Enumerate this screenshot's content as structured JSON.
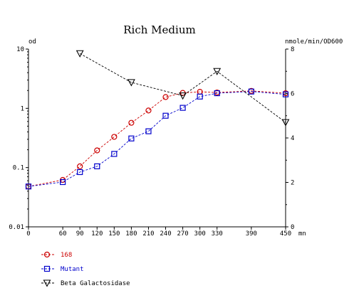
{
  "chart_data": {
    "type": "line",
    "title": "Rich Medium",
    "y_left_label": "od",
    "y_right_label": "nmole/min/OD600",
    "x_unit_label": "mn",
    "x_ticks": [
      0,
      60,
      90,
      120,
      150,
      180,
      210,
      240,
      270,
      300,
      330,
      390,
      450
    ],
    "x_range": [
      0,
      450
    ],
    "y_left_scale": "log",
    "y_left_range": [
      0.01,
      10
    ],
    "y_left_ticks": [
      {
        "value": 10,
        "label": "10"
      },
      {
        "value": 1,
        "label": "1"
      },
      {
        "value": 0.1,
        "label": "0.1"
      },
      {
        "value": 0.01,
        "label": "0.01"
      }
    ],
    "y_right_range": [
      0,
      8
    ],
    "y_right_ticks": [
      0,
      2,
      4,
      6,
      8
    ],
    "grid": false,
    "legend_position": "bottom-left",
    "series": [
      {
        "name": "168",
        "axis": "left",
        "color": "#cc0000",
        "marker": "circle",
        "x": [
          0,
          60,
          90,
          120,
          150,
          180,
          210,
          240,
          270,
          300,
          330,
          390,
          450
        ],
        "y": [
          0.048,
          0.062,
          0.105,
          0.195,
          0.33,
          0.57,
          0.92,
          1.55,
          1.82,
          1.9,
          1.85,
          1.97,
          1.8
        ]
      },
      {
        "name": "Mutant",
        "axis": "left",
        "color": "#0000cc",
        "marker": "square",
        "x": [
          0,
          60,
          90,
          120,
          150,
          180,
          210,
          240,
          270,
          300,
          330,
          390,
          450
        ],
        "y": [
          0.048,
          0.057,
          0.084,
          0.105,
          0.17,
          0.31,
          0.41,
          0.75,
          1.02,
          1.58,
          1.8,
          1.92,
          1.72
        ]
      },
      {
        "name": "Beta Galactosidase",
        "axis": "right",
        "color": "#000000",
        "marker": "triangle-down",
        "x": [
          90,
          180,
          270,
          330,
          450
        ],
        "y": [
          7.8,
          6.5,
          5.9,
          7.0,
          4.7
        ]
      }
    ]
  }
}
